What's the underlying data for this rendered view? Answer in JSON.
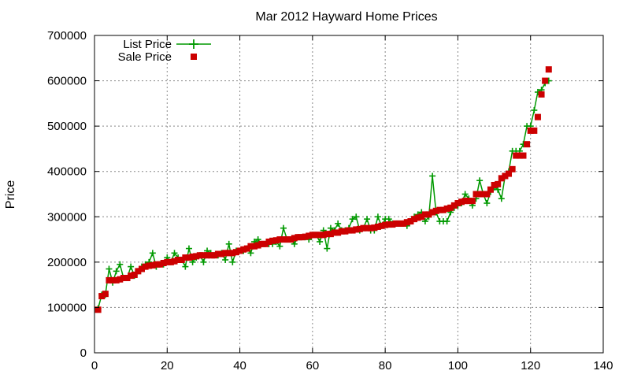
{
  "chart_data": {
    "type": "line",
    "title": "Mar 2012 Hayward Home Prices",
    "xlabel": "",
    "ylabel": "Price",
    "xlim": [
      0,
      140
    ],
    "ylim": [
      0,
      700000
    ],
    "xticks": [
      "0",
      "20",
      "40",
      "60",
      "80",
      "100",
      "120",
      "140"
    ],
    "yticks": [
      "0",
      "100000",
      "200000",
      "300000",
      "400000",
      "500000",
      "600000",
      "700000"
    ],
    "grid": true,
    "legend_position": "top-left",
    "series": [
      {
        "name": "List Price",
        "style": "line-with-plus-markers",
        "color": "#009900",
        "values": [
          98000,
          128000,
          128000,
          185000,
          155000,
          180000,
          195000,
          165000,
          165000,
          190000,
          170000,
          180000,
          190000,
          195000,
          200000,
          220000,
          190000,
          195000,
          195000,
          210000,
          200000,
          220000,
          210000,
          205000,
          190000,
          230000,
          200000,
          210000,
          215000,
          200000,
          225000,
          220000,
          215000,
          215000,
          220000,
          205000,
          240000,
          200000,
          225000,
          225000,
          225000,
          230000,
          220000,
          245000,
          250000,
          240000,
          240000,
          240000,
          240000,
          245000,
          235000,
          275000,
          250000,
          250000,
          240000,
          255000,
          255000,
          255000,
          250000,
          260000,
          260000,
          245000,
          270000,
          230000,
          275000,
          270000,
          285000,
          270000,
          270000,
          275000,
          295000,
          300000,
          270000,
          275000,
          295000,
          270000,
          270000,
          300000,
          280000,
          295000,
          295000,
          285000,
          285000,
          285000,
          285000,
          280000,
          290000,
          300000,
          305000,
          310000,
          290000,
          300000,
          390000,
          310000,
          290000,
          290000,
          290000,
          310000,
          320000,
          325000,
          330000,
          350000,
          340000,
          325000,
          340000,
          380000,
          350000,
          330000,
          355000,
          365000,
          360000,
          340000,
          390000,
          400000,
          445000,
          445000,
          445000,
          460000,
          500000,
          500000,
          535000,
          575000,
          580000,
          595000,
          600000
        ]
      },
      {
        "name": "Sale Price",
        "style": "square-markers",
        "color": "#cc0000",
        "values": [
          95000,
          125000,
          130000,
          160000,
          160000,
          160000,
          162000,
          165000,
          165000,
          170000,
          172000,
          180000,
          185000,
          190000,
          192000,
          193000,
          195000,
          195000,
          198000,
          200000,
          200000,
          202000,
          205000,
          205000,
          210000,
          210000,
          212000,
          213000,
          215000,
          215000,
          215000,
          215000,
          215000,
          218000,
          218000,
          220000,
          220000,
          220000,
          222000,
          225000,
          228000,
          230000,
          235000,
          235000,
          237000,
          240000,
          240000,
          245000,
          247000,
          248000,
          250000,
          250000,
          250000,
          250000,
          253000,
          255000,
          255000,
          256000,
          258000,
          260000,
          260000,
          260000,
          260000,
          262000,
          262000,
          265000,
          265000,
          268000,
          268000,
          270000,
          270000,
          272000,
          273000,
          275000,
          275000,
          275000,
          276000,
          278000,
          280000,
          282000,
          283000,
          283000,
          285000,
          285000,
          285000,
          288000,
          290000,
          295000,
          298000,
          300000,
          305000,
          305000,
          310000,
          313000,
          315000,
          315000,
          318000,
          320000,
          325000,
          330000,
          333000,
          335000,
          335000,
          335000,
          350000,
          350000,
          350000,
          350000,
          360000,
          370000,
          372000,
          385000,
          390000,
          395000,
          405000,
          435000,
          435000,
          435000,
          460000,
          490000,
          490000,
          520000,
          570000,
          600000,
          625000
        ]
      }
    ]
  }
}
